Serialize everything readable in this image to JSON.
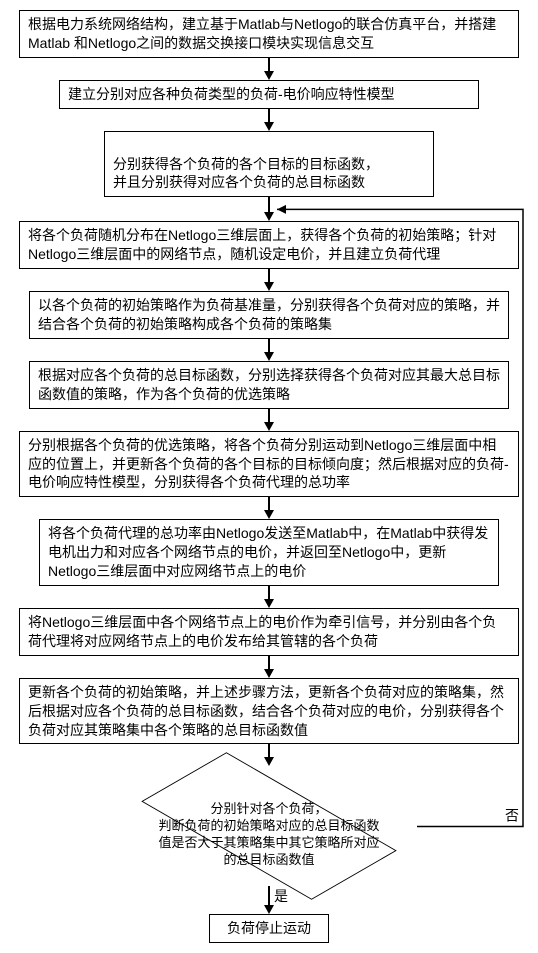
{
  "boxes": {
    "b1": "根据电力系统网络结构，建立基于Matlab与Netlogo的联合仿真平台，并搭建Matlab 和Netlogo之间的数据交换接口模块实现信息交互",
    "b2": "建立分别对应各种负荷类型的负荷-电价响应特性模型",
    "b3": "分别获得各个负荷的各个目标的目标函数，\n并且分别获得对应各个负荷的总目标函数",
    "b4": "将各个负荷随机分布在Netlogo三维层面上，获得各个负荷的初始策略；针对Netlogo三维层面中的网络节点，随机设定电价，并且建立负荷代理",
    "b5": "以各个负荷的初始策略作为负荷基准量，分别获得各个负荷对应的策略，并结合各个负荷的初始策略构成各个负荷的策略集",
    "b6": "根据对应各个负荷的总目标函数，分别选择获得各个负荷对应其最大总目标函数值的策略，作为各个负荷的优选策略",
    "b7": "分别根据各个负荷的优选策略，将各个负荷分别运动到Netlogo三维层面中相应的位置上，并更新各个负荷的各个目标的目标倾向度；然后根据对应的负荷-电价响应特性模型，分别获得各个负荷代理的总功率",
    "b8": "将各个负荷代理的总功率由Netlogo发送至Matlab中，在Matlab中获得发电机出力和对应各个网络节点的电价，并返回至Netlogo中，更新Netlogo三维层面中对应网络节点上的电价",
    "b9": "将Netlogo三维层面中各个网络节点上的电价作为牵引信号，并分别由各个负荷代理将对应网络节点上的电价发布给其管辖的各个负荷",
    "b10": "更新各个负荷的初始策略，并上述步骤方法，更新各个负荷对应的策略集，然后根据对应各个负荷的总目标函数，结合各个负荷对应的电价，分别获得各个负荷对应其策略集中各个策略的总目标函数值",
    "decision": "分别针对各个负荷，\n判断负荷的初始策略对应的总目标函数值是否大于其策略集中其它策略所对应的总目标函数值",
    "b11": "负荷停止运动"
  },
  "labels": {
    "yes": "是",
    "no": "否"
  },
  "style": {
    "font_size_box": 14,
    "font_size_decision": 13,
    "border_color": "#000000",
    "background": "#ffffff",
    "arrow_color": "#000000",
    "box_widths": {
      "w_full": 500,
      "w_wide": 480,
      "w_mid": 420,
      "w_narrow": 330,
      "w_small": 120
    },
    "connector_gap": 14
  }
}
